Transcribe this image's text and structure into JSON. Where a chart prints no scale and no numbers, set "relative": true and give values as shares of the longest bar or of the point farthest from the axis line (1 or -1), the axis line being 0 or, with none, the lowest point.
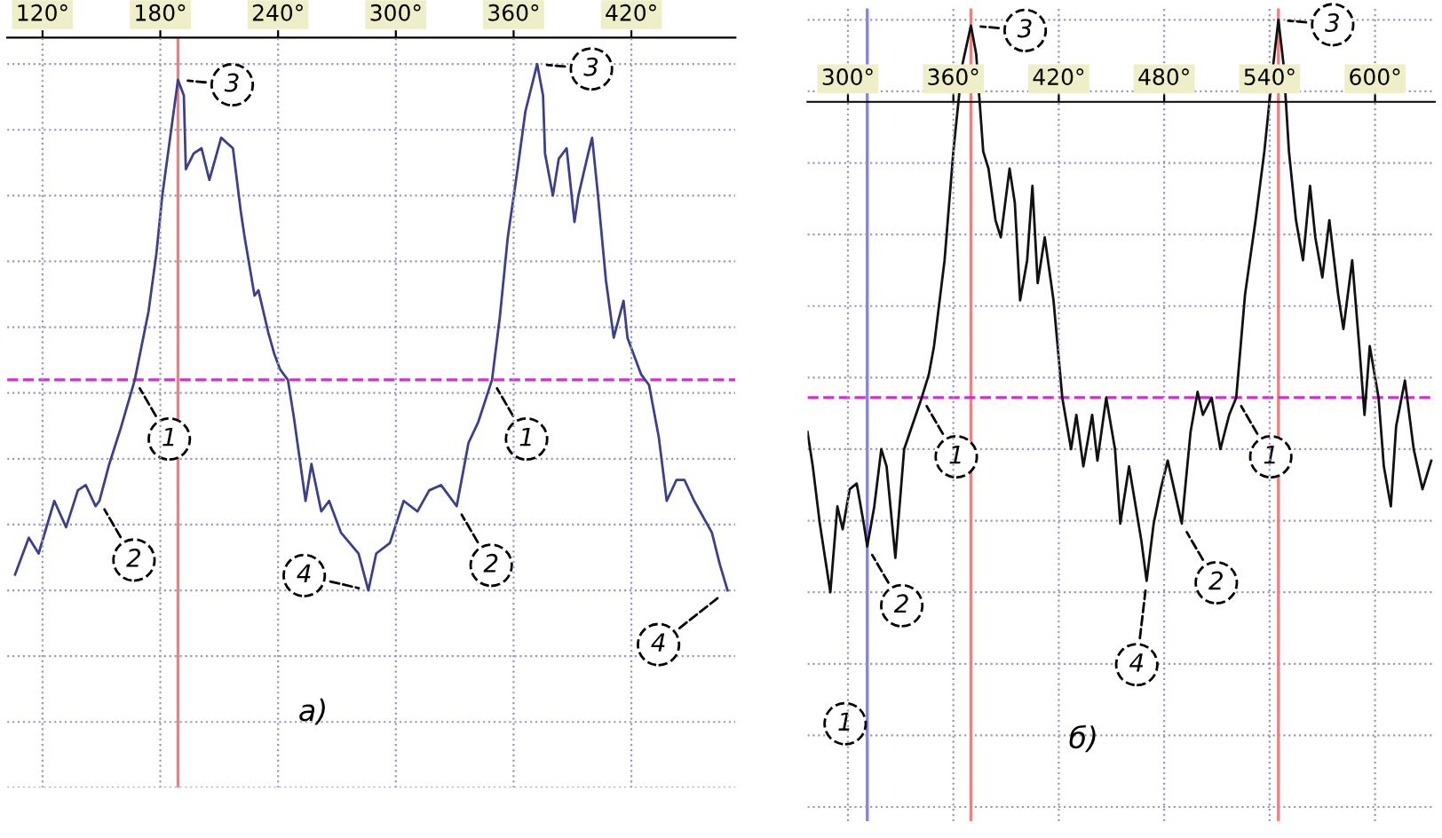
{
  "chart_data": [
    {
      "type": "line",
      "relative": true,
      "grid": true,
      "xlim": [
        102,
        473
      ],
      "xticks": [
        {
          "value": 120,
          "label": "120°"
        },
        {
          "value": 180,
          "label": "180°"
        },
        {
          "value": 240,
          "label": "240°"
        },
        {
          "value": 300,
          "label": "300°"
        },
        {
          "value": 360,
          "label": "360°"
        },
        {
          "value": 420,
          "label": "420°"
        }
      ],
      "series": [
        {
          "color": "#3b3f8c",
          "x": [
            106,
            113,
            118,
            126,
            132,
            138,
            142,
            147,
            149,
            154,
            160,
            167,
            174,
            178,
            181,
            185,
            189,
            192,
            193,
            197,
            201,
            205,
            211,
            217,
            221,
            223,
            228,
            230,
            235,
            238,
            241,
            245,
            248,
            254,
            257,
            262,
            266,
            272,
            281,
            286,
            290,
            297,
            304,
            311,
            317,
            323,
            329,
            331,
            337,
            342,
            349,
            353,
            357,
            362,
            366,
            372,
            375,
            376,
            380,
            383,
            387,
            391,
            393,
            398,
            400,
            403,
            407,
            411,
            416,
            418,
            425,
            429,
            434,
            438,
            443,
            447,
            452,
            461,
            465,
            469
          ],
          "values": [
            0.03,
            0.1,
            0.07,
            0.17,
            0.12,
            0.19,
            0.2,
            0.16,
            0.17,
            0.24,
            0.31,
            0.4,
            0.53,
            0.64,
            0.75,
            0.86,
            0.97,
            0.94,
            0.8,
            0.83,
            0.84,
            0.78,
            0.86,
            0.84,
            0.72,
            0.67,
            0.56,
            0.57,
            0.49,
            0.45,
            0.42,
            0.4,
            0.33,
            0.17,
            0.24,
            0.15,
            0.17,
            0.11,
            0.07,
            0,
            0.07,
            0.09,
            0.17,
            0.15,
            0.19,
            0.2,
            0.17,
            0.16,
            0.28,
            0.32,
            0.4,
            0.52,
            0.67,
            0.8,
            0.91,
            1,
            0.94,
            0.83,
            0.75,
            0.82,
            0.84,
            0.7,
            0.75,
            0.83,
            0.86,
            0.75,
            0.59,
            0.48,
            0.55,
            0.48,
            0.41,
            0.39,
            0.29,
            0.17,
            0.21,
            0.21,
            0.17,
            0.11,
            0.05,
            0
          ]
        }
      ],
      "ref_lines": [
        {
          "axis": "x",
          "value": 189,
          "color": "#f08080"
        },
        {
          "axis": "y",
          "value": 0.4,
          "color": "#cc33cc",
          "line_style": "dashed"
        }
      ],
      "annotations": [
        {
          "text": "3",
          "x": 189,
          "y": 0.97
        },
        {
          "text": "3",
          "x": 372,
          "y": 1
        },
        {
          "text": "1",
          "x": 167,
          "y": 0.4
        },
        {
          "text": "1",
          "x": 349,
          "y": 0.4
        },
        {
          "text": "2",
          "x": 149,
          "y": 0.17
        },
        {
          "text": "2",
          "x": 331,
          "y": 0.16
        },
        {
          "text": "4",
          "x": 286,
          "y": 0
        },
        {
          "text": "4",
          "x": 469,
          "y": 0
        },
        "а)"
      ]
    },
    {
      "type": "line",
      "relative": true,
      "grid": true,
      "xlim": [
        277,
        634
      ],
      "xticks": [
        {
          "value": 300,
          "label": "300°"
        },
        {
          "value": 360,
          "label": "360°"
        },
        {
          "value": 420,
          "label": "420°"
        },
        {
          "value": 480,
          "label": "480°"
        },
        {
          "value": 540,
          "label": "540°"
        },
        {
          "value": 600,
          "label": "600°"
        }
      ],
      "series": [
        {
          "color": "#111111",
          "x": [
            277,
            280,
            284,
            287,
            290,
            294,
            297,
            301,
            305,
            309,
            311,
            315,
            319,
            322,
            327,
            332,
            342,
            346,
            349,
            355,
            360,
            365,
            370,
            373,
            377,
            380,
            384,
            387,
            392,
            395,
            398,
            402,
            405,
            408,
            412,
            417,
            422,
            427,
            430,
            434,
            439,
            442,
            447,
            452,
            455,
            460,
            467,
            470,
            474,
            478,
            482,
            490,
            495,
            499,
            502,
            507,
            512,
            517,
            521,
            526,
            532,
            537,
            542,
            545,
            548,
            551,
            555,
            559,
            563,
            566,
            570,
            574,
            579,
            582,
            587,
            591,
            594,
            597,
            602,
            605,
            609,
            612,
            617,
            622,
            627,
            632
          ],
          "values": [
            0.28,
            0.22,
            0.12,
            0.06,
            0,
            0.15,
            0.11,
            0.18,
            0.19,
            0.12,
            0.08,
            0.15,
            0.25,
            0.22,
            0.06,
            0.25,
            0.34,
            0.38,
            0.43,
            0.58,
            0.77,
            0.92,
            0.99,
            0.94,
            0.77,
            0.74,
            0.65,
            0.62,
            0.74,
            0.68,
            0.51,
            0.58,
            0.71,
            0.54,
            0.62,
            0.51,
            0.34,
            0.25,
            0.31,
            0.22,
            0.31,
            0.23,
            0.34,
            0.25,
            0.12,
            0.22,
            0.09,
            0.02,
            0.12,
            0.18,
            0.23,
            0.12,
            0.28,
            0.35,
            0.31,
            0.34,
            0.25,
            0.31,
            0.34,
            0.52,
            0.65,
            0.77,
            0.92,
            1,
            0.92,
            0.77,
            0.65,
            0.58,
            0.71,
            0.62,
            0.55,
            0.65,
            0.52,
            0.46,
            0.58,
            0.43,
            0.31,
            0.43,
            0.34,
            0.22,
            0.15,
            0.29,
            0.37,
            0.25,
            0.18,
            0.23
          ]
        }
      ],
      "ref_lines": [
        {
          "axis": "x",
          "value": 311,
          "color": "#8080ff"
        },
        {
          "axis": "x",
          "value": 370,
          "color": "#f08080"
        },
        {
          "axis": "x",
          "value": 545,
          "color": "#f08080"
        },
        {
          "axis": "y",
          "value": 0.34,
          "color": "#cc33cc",
          "line_style": "dashed"
        }
      ],
      "annotations": [
        {
          "text": "3",
          "x": 370,
          "y": 0.99
        },
        {
          "text": "3",
          "x": 545,
          "y": 1
        },
        {
          "text": "1",
          "x": 342,
          "y": 0.34
        },
        {
          "text": "1",
          "x": 521,
          "y": 0.34
        },
        {
          "text": "2",
          "x": 311,
          "y": 0.08
        },
        {
          "text": "2",
          "x": 490,
          "y": 0.12
        },
        {
          "text": "4",
          "x": 470,
          "y": 0.02
        },
        "1",
        "б)"
      ]
    }
  ]
}
